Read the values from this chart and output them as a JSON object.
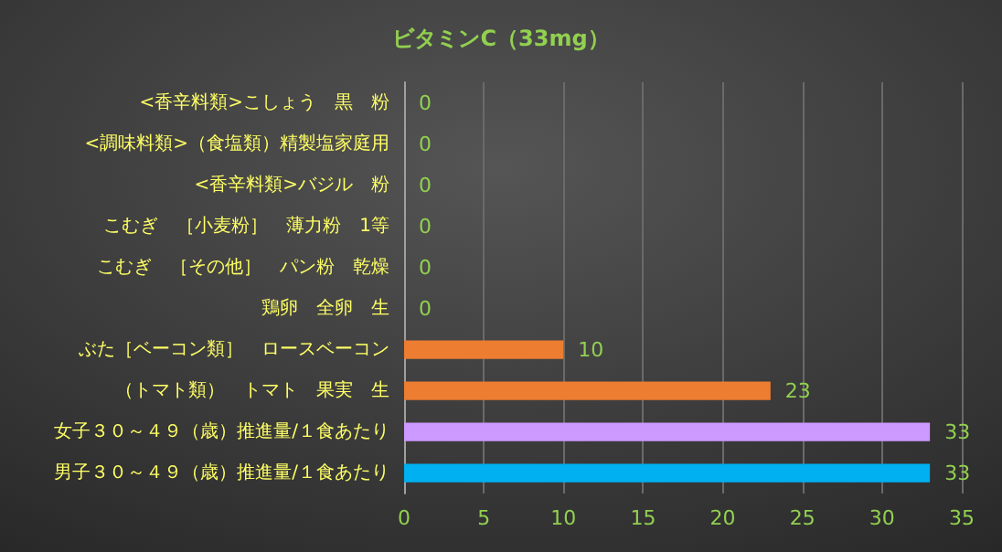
{
  "chart_data": {
    "type": "bar",
    "orientation": "horizontal",
    "title": "ビタミンC（33mg）",
    "categories": [
      "<香辛料類>こしょう　黒　粉",
      "<調味料類>（食塩類）精製塩家庭用",
      "<香辛料類>バジル　粉",
      "こむぎ　［小麦粉］　薄力粉　1等",
      "こむぎ　［その他］　パン粉　乾燥",
      "鶏卵　全卵　生",
      "ぶた［ベーコン類］　ロースベーコン",
      "（トマト類）　トマト　果実　生",
      "女子３０～４９（歳）推進量/１食あたり",
      "男子３０～４９（歳）推進量/１食あたり"
    ],
    "values": [
      0,
      0,
      0,
      0,
      0,
      0,
      10,
      23,
      33,
      33
    ],
    "colors": [
      "#ed7d31",
      "#ed7d31",
      "#ed7d31",
      "#ed7d31",
      "#ed7d31",
      "#ed7d31",
      "#ed7d31",
      "#ed7d31",
      "#cc99ff",
      "#00b0f0"
    ],
    "xlim": [
      0,
      35
    ],
    "xticks": [
      0,
      5,
      10,
      15,
      20,
      25,
      30,
      35
    ],
    "grid": "x",
    "data_labels": true
  }
}
